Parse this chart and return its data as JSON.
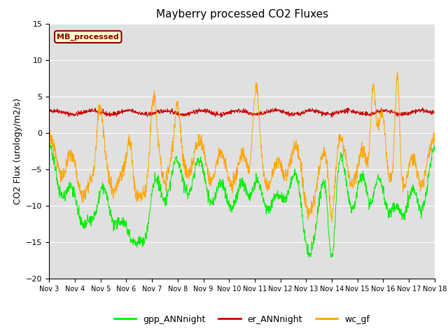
{
  "title": "Mayberry processed CO2 Fluxes",
  "ylabel": "CO2 Flux (urology/m2/s)",
  "ylim": [
    -20,
    15
  ],
  "yticks": [
    -20,
    -15,
    -10,
    -5,
    0,
    5,
    10,
    15
  ],
  "xlim_days": [
    3,
    18
  ],
  "xtick_labels": [
    "Nov 3",
    "Nov 4",
    "Nov 5",
    "Nov 6",
    "Nov 7",
    "Nov 8",
    "Nov 9",
    "Nov 10",
    "Nov 11",
    "Nov 12",
    "Nov 13",
    "Nov 14",
    "Nov 15",
    "Nov 16",
    "Nov 17",
    "Nov 18"
  ],
  "color_gpp": "#00ee00",
  "color_er": "#cc0000",
  "color_wc": "#ffa500",
  "bg_color": "#e0e0e0",
  "legend_box_text": "MB_processed",
  "legend_box_facecolor": "#ffffcc",
  "legend_box_edgecolor": "#8b0000",
  "legend_box_textcolor": "#8b0000",
  "n_points": 1500,
  "seed": 42
}
